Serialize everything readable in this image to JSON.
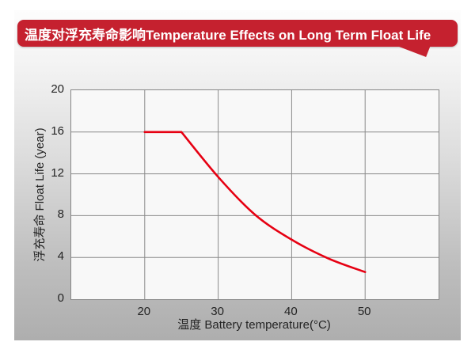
{
  "header": {
    "title": "温度对浮充寿命影响Temperature Effects on Long Term Float Life"
  },
  "colors": {
    "banner_red": "#c5212f",
    "curve_red": "#e60012",
    "grid_gray": "#8a8a8a",
    "plot_bg": "#f8f8f8"
  },
  "chart_data": {
    "type": "line",
    "title": "温度对浮充寿命影响Temperature Effects on Long Term Float Life",
    "xlabel": "温度 Battery temperature(°C)",
    "ylabel": "浮充寿命 Float Life (year)",
    "xlim": [
      10,
      60
    ],
    "ylim": [
      0,
      20
    ],
    "x_ticks": [
      20,
      30,
      40,
      50
    ],
    "y_ticks": [
      0,
      4,
      8,
      12,
      16,
      20
    ],
    "grid": true,
    "legend": false,
    "series": [
      {
        "name": "float-life-vs-temperature",
        "color": "#e60012",
        "points": [
          [
            20,
            16
          ],
          [
            25,
            16
          ],
          [
            30,
            11.7
          ],
          [
            35,
            8.1
          ],
          [
            40,
            5.7
          ],
          [
            45,
            3.9
          ],
          [
            50,
            2.6
          ]
        ]
      }
    ]
  }
}
